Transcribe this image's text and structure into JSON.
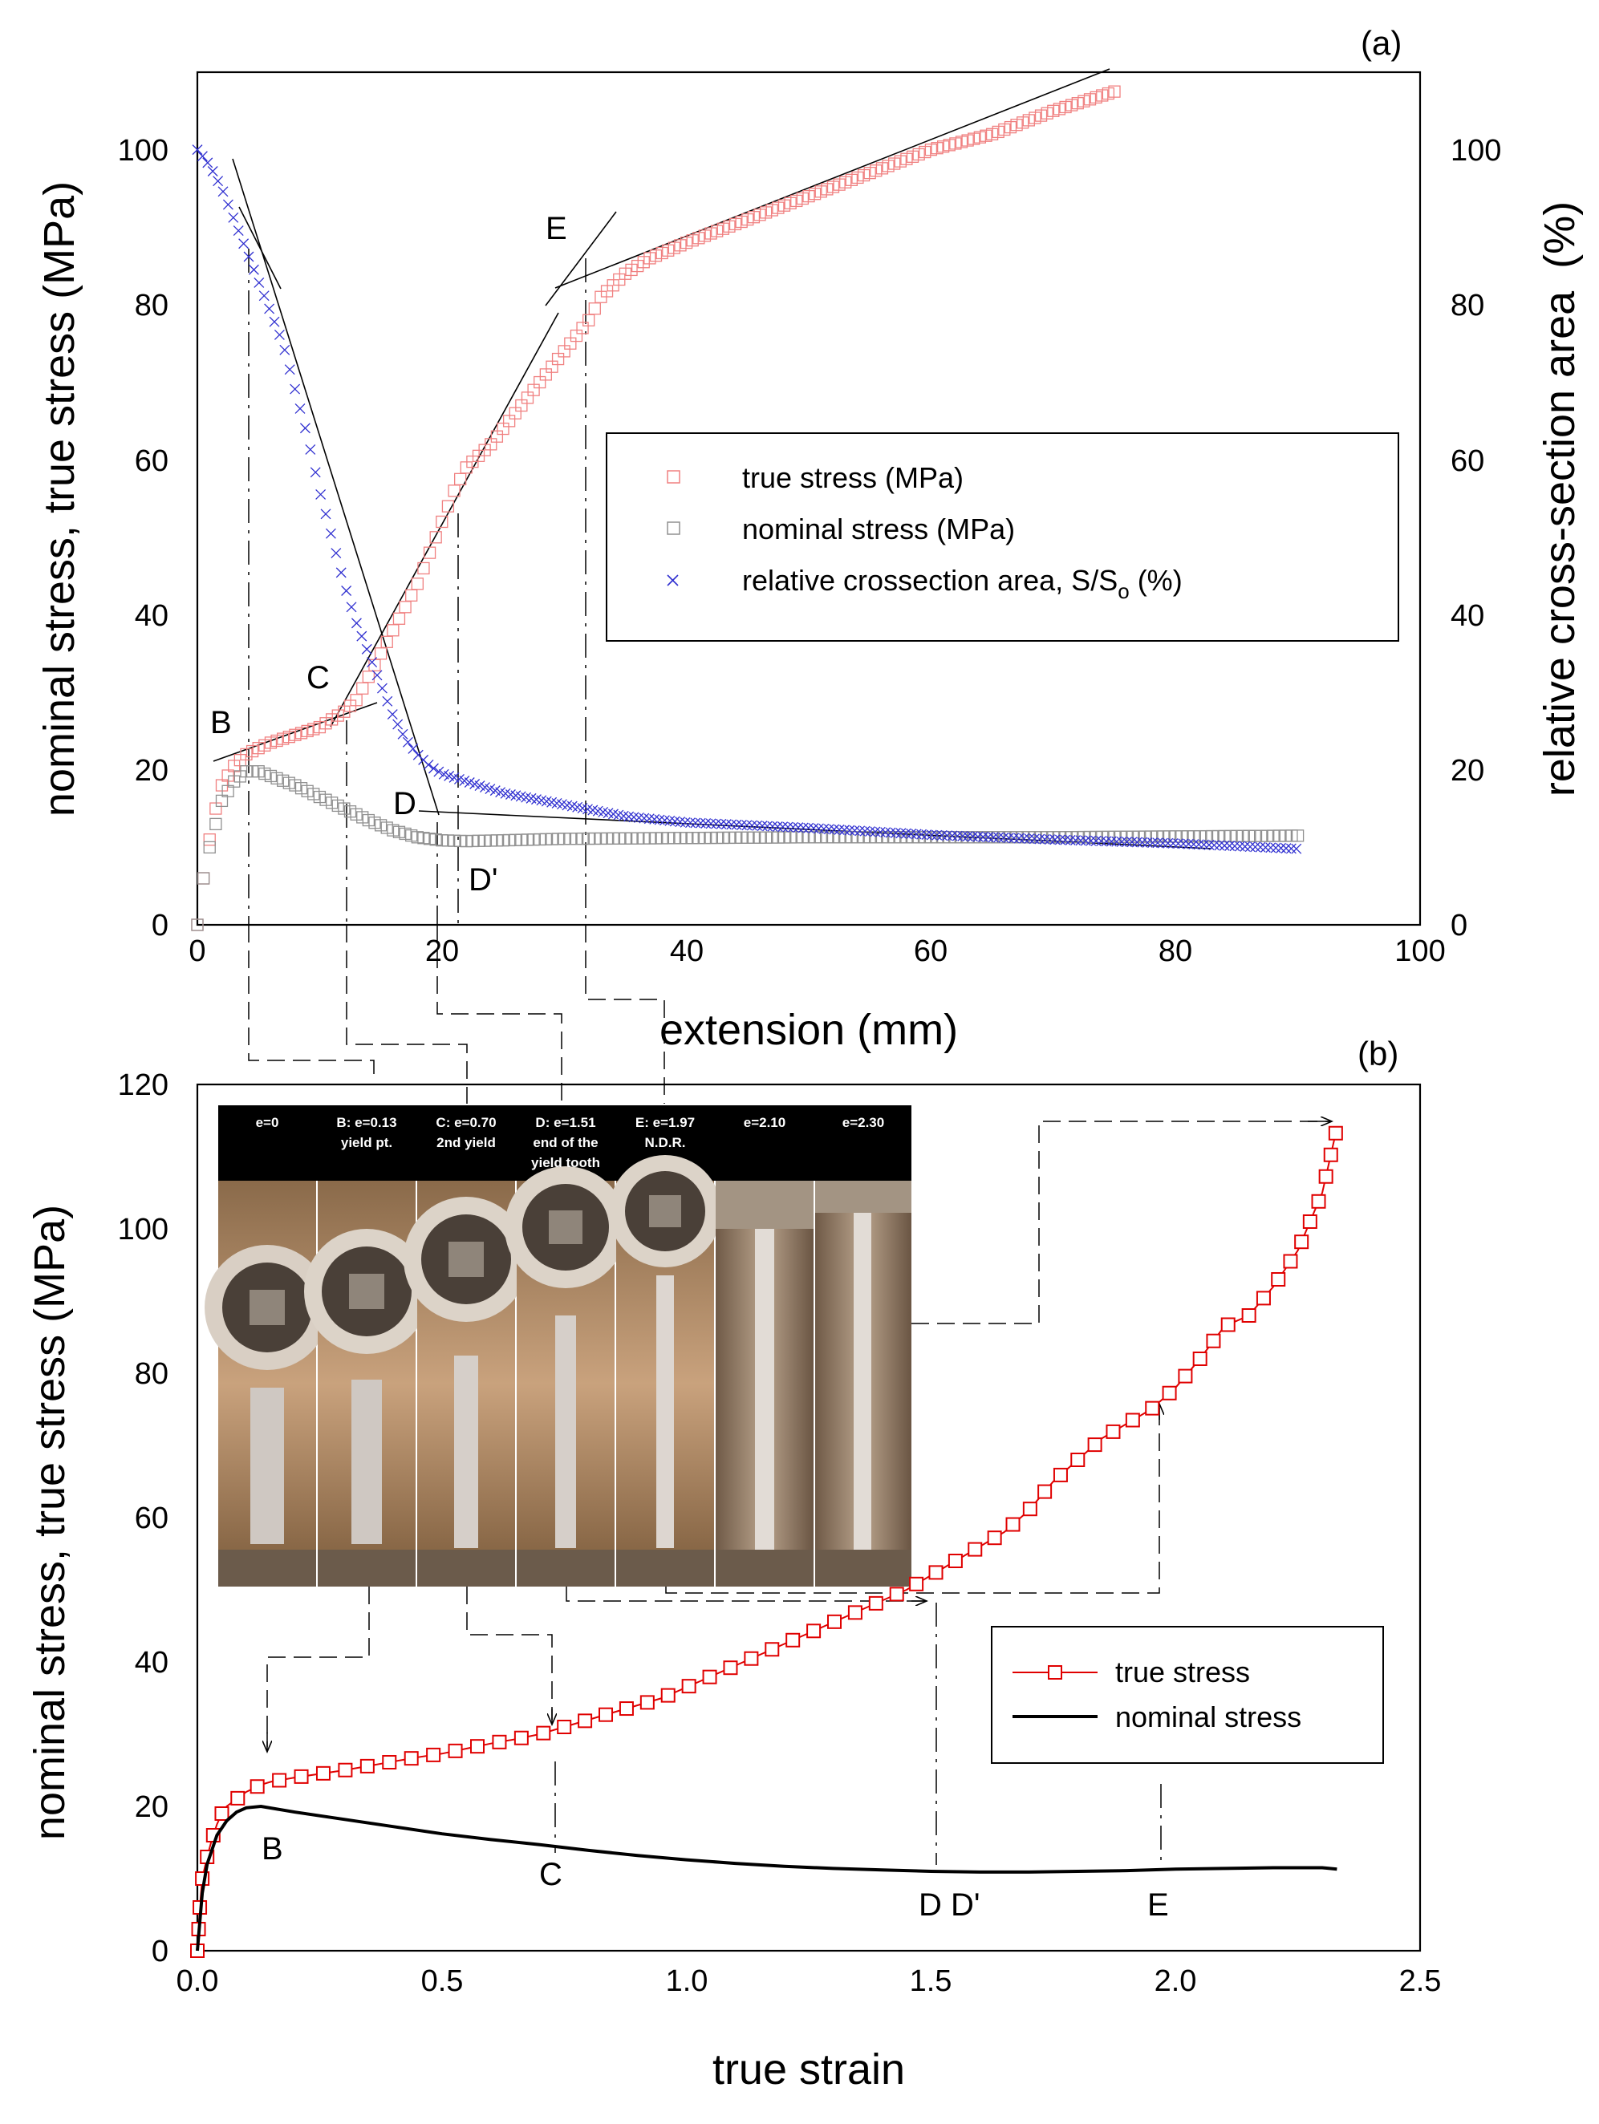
{
  "chart_data": [
    {
      "panel": "(a)",
      "type": "scatter",
      "xlabel": "extension (mm)",
      "ylabel": "nominal stress, true stress (MPa)",
      "ylabel_right_parts": [
        "relative cross-section area",
        "(%)"
      ],
      "xlim": [
        0,
        100
      ],
      "ylim": [
        0,
        110
      ],
      "ylim_right": [
        0,
        110
      ],
      "xticks": [
        "0",
        "20",
        "40",
        "60",
        "80",
        "100"
      ],
      "yticks": [
        "0",
        "20",
        "40",
        "60",
        "80",
        "100"
      ],
      "yticks_right": [
        "0",
        "20",
        "40",
        "60",
        "80",
        "100"
      ],
      "legend": [
        {
          "text": "true stress (MPa)",
          "marker": "square",
          "color": "#f08080"
        },
        {
          "text": "nominal stress (MPa)",
          "marker": "square",
          "color": "#909090"
        },
        {
          "text_before_sub": "relative crossection area, S/S",
          "sub": "o",
          "text_after_sub": " (%)",
          "marker": "x",
          "color": "#3030d0"
        }
      ],
      "series": [
        {
          "name": "true stress (MPa)",
          "points": [
            [
              0,
              0
            ],
            [
              0.5,
              6
            ],
            [
              1,
              11
            ],
            [
              1.5,
              15
            ],
            [
              2,
              18
            ],
            [
              3,
              20.5
            ],
            [
              4,
              22
            ],
            [
              5,
              22.8
            ],
            [
              6,
              23.5
            ],
            [
              8,
              24.5
            ],
            [
              10,
              25.5
            ],
            [
              11,
              26.5
            ],
            [
              12,
              27.5
            ],
            [
              13,
              29
            ],
            [
              14,
              32
            ],
            [
              15,
              35
            ],
            [
              16,
              38
            ],
            [
              17,
              41
            ],
            [
              18,
              44
            ],
            [
              19,
              48
            ],
            [
              20,
              52
            ],
            [
              21,
              56
            ],
            [
              22,
              59
            ],
            [
              24,
              62
            ],
            [
              26,
              66
            ],
            [
              28,
              70
            ],
            [
              30,
              74
            ],
            [
              31,
              76
            ],
            [
              32,
              78
            ],
            [
              33,
              81
            ],
            [
              35,
              84
            ],
            [
              37,
              86
            ],
            [
              40,
              88
            ],
            [
              45,
              91
            ],
            [
              50,
              94
            ],
            [
              55,
              97
            ],
            [
              60,
              100
            ],
            [
              65,
              102
            ],
            [
              70,
              105
            ],
            [
              75,
              107.5
            ]
          ]
        },
        {
          "name": "nominal stress (MPa)",
          "points": [
            [
              0,
              0
            ],
            [
              0.5,
              6
            ],
            [
              1,
              10
            ],
            [
              1.5,
              13
            ],
            [
              2,
              16
            ],
            [
              3,
              18.5
            ],
            [
              4,
              19.8
            ],
            [
              5,
              19.8
            ],
            [
              6,
              19.2
            ],
            [
              8,
              18
            ],
            [
              10,
              16.5
            ],
            [
              12,
              15
            ],
            [
              14,
              13.5
            ],
            [
              16,
              12.2
            ],
            [
              18,
              11.3
            ],
            [
              20,
              10.9
            ],
            [
              22,
              10.8
            ],
            [
              25,
              10.9
            ],
            [
              30,
              11.1
            ],
            [
              40,
              11.2
            ],
            [
              50,
              11.3
            ],
            [
              60,
              11.3
            ],
            [
              70,
              11.3
            ],
            [
              80,
              11.4
            ],
            [
              90,
              11.5
            ]
          ]
        },
        {
          "name": "relative crossection area, S/So (%)",
          "points": [
            [
              0,
              100
            ],
            [
              1,
              98
            ],
            [
              2,
              95
            ],
            [
              3,
              91
            ],
            [
              4,
              87
            ],
            [
              5,
              83
            ],
            [
              6,
              79
            ],
            [
              7,
              75
            ],
            [
              8,
              69
            ],
            [
              9,
              63
            ],
            [
              10,
              56
            ],
            [
              11,
              50
            ],
            [
              12,
              44
            ],
            [
              13,
              39
            ],
            [
              14,
              35
            ],
            [
              15,
              31
            ],
            [
              16,
              27
            ],
            [
              17,
              24
            ],
            [
              18,
              22
            ],
            [
              19,
              20.5
            ],
            [
              20,
              19.5
            ],
            [
              22,
              18.5
            ],
            [
              25,
              17
            ],
            [
              30,
              15.5
            ],
            [
              35,
              14
            ],
            [
              40,
              13.2
            ],
            [
              50,
              12.5
            ],
            [
              60,
              11.6
            ],
            [
              70,
              11
            ],
            [
              80,
              10.5
            ],
            [
              90,
              9.8
            ]
          ]
        }
      ],
      "annotations": [
        "B",
        "C",
        "D",
        "D'",
        "E"
      ]
    },
    {
      "panel": "(b)",
      "type": "line",
      "xlabel": "true strain",
      "ylabel": "nominal stress, true stress (MPa)",
      "xlim": [
        0,
        2.5
      ],
      "ylim": [
        0,
        120
      ],
      "xticks": [
        "0.0",
        "0.5",
        "1.0",
        "1.5",
        "2.0",
        "2.5"
      ],
      "yticks": [
        "0",
        "20",
        "40",
        "60",
        "80",
        "100",
        "120"
      ],
      "legend": [
        {
          "text": "true stress",
          "marker": "square-line",
          "color": "#e00000"
        },
        {
          "text": "nominal stress",
          "marker": "line",
          "color": "#000000"
        }
      ],
      "series": [
        {
          "name": "true stress",
          "x": [
            0,
            0.005,
            0.01,
            0.02,
            0.03,
            0.04,
            0.05,
            0.06,
            0.08,
            0.1,
            0.13,
            0.15,
            0.2,
            0.25,
            0.3,
            0.35,
            0.4,
            0.45,
            0.5,
            0.55,
            0.6,
            0.65,
            0.7,
            0.75,
            0.8,
            0.85,
            0.9,
            0.95,
            1.0,
            1.05,
            1.1,
            1.15,
            1.2,
            1.25,
            1.3,
            1.35,
            1.4,
            1.45,
            1.5,
            1.55,
            1.6,
            1.65,
            1.7,
            1.75,
            1.8,
            1.85,
            1.9,
            1.95,
            2.0,
            2.05,
            2.1,
            2.15,
            2.2,
            2.25,
            2.3,
            2.33
          ],
          "values": [
            0,
            6,
            10,
            13,
            15.5,
            17.5,
            19,
            20,
            21,
            22,
            23,
            23.4,
            24,
            24.5,
            25,
            25.6,
            26.2,
            26.8,
            27.3,
            28,
            28.7,
            29.3,
            30,
            31,
            32,
            33,
            34,
            35,
            36.5,
            38,
            39.5,
            41,
            42.5,
            44,
            45.5,
            47,
            48.5,
            50,
            52,
            54,
            56,
            58,
            61,
            65,
            68,
            71,
            73,
            75,
            78,
            82,
            86.5,
            88,
            92,
            97,
            105,
            114
          ]
        },
        {
          "name": "nominal stress",
          "x": [
            0,
            0.01,
            0.02,
            0.04,
            0.06,
            0.08,
            0.1,
            0.13,
            0.2,
            0.3,
            0.4,
            0.5,
            0.6,
            0.7,
            0.8,
            0.9,
            1.0,
            1.1,
            1.2,
            1.3,
            1.4,
            1.5,
            1.6,
            1.7,
            1.8,
            1.9,
            2.0,
            2.1,
            2.2,
            2.3,
            2.33
          ],
          "values": [
            0,
            8,
            12,
            16,
            18,
            19.2,
            19.8,
            20,
            19.2,
            18.2,
            17.2,
            16.2,
            15.4,
            14.7,
            13.9,
            13.2,
            12.6,
            12.1,
            11.7,
            11.4,
            11.2,
            11.0,
            10.9,
            10.9,
            11.0,
            11.1,
            11.3,
            11.4,
            11.5,
            11.5,
            11.3
          ]
        }
      ],
      "annotations": [
        "B",
        "C",
        "D D'",
        "E"
      ],
      "inset_photo_captions": [
        {
          "line1": "e=0",
          "line2": "",
          "line3": ""
        },
        {
          "line1": "B: e=0.13",
          "line2": "yield pt.",
          "line3": ""
        },
        {
          "line1": "C: e=0.70",
          "line2": "2nd yield",
          "line3": ""
        },
        {
          "line1": "D: e=1.51",
          "line2": "end of the",
          "line3": "yield tooth"
        },
        {
          "line1": "E: e=1.97",
          "line2": "N.D.R.",
          "line3": ""
        },
        {
          "line1": "e=2.10",
          "line2": "",
          "line3": ""
        },
        {
          "line1": "e=2.30",
          "line2": "",
          "line3": ""
        }
      ]
    }
  ]
}
